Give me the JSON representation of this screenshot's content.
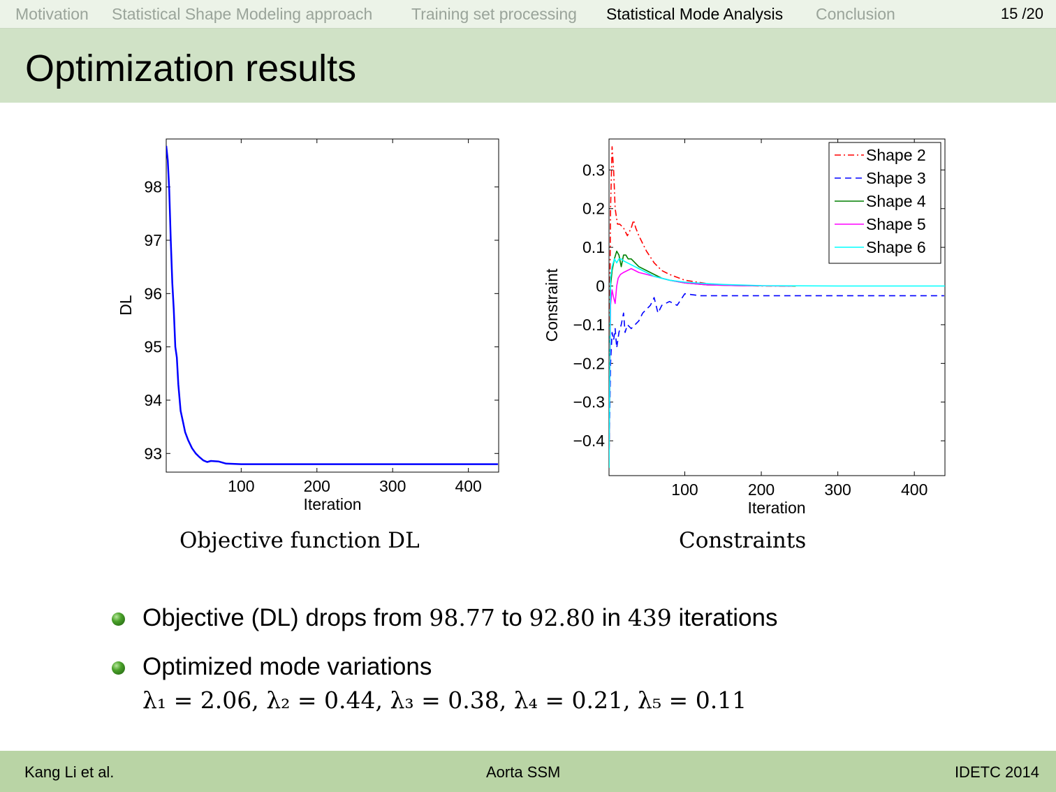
{
  "nav": {
    "items": [
      "Motivation",
      "Statistical Shape Modeling approach",
      "Training set processing",
      "Statistical Mode Analysis",
      "Conclusion"
    ],
    "active_index": 3,
    "page": "15 /20"
  },
  "title": "Optimization results",
  "captions": {
    "left": "Objective function DL",
    "right": "Constraints"
  },
  "bullets": {
    "b1": {
      "t1": "Objective (DL) drops from ",
      "v1": "98.77",
      "t2": " to ",
      "v2": "92.80",
      "t3": " in ",
      "v3": "439",
      "t4": " iterations"
    },
    "b2": {
      "text": "Optimized mode variations",
      "lambdas": "λ₁ = 2.06, λ₂ = 0.44, λ₃ = 0.38, λ₄ = 0.21, λ₅ = 0.11"
    }
  },
  "footer": {
    "left": "Kang Li et al.",
    "center": "Aorta SSM",
    "right": "IDETC 2014"
  },
  "colors": {
    "accent_nav": "#ecf3e8",
    "title_band": "#d0e2c6",
    "footer_band": "#b9d4a5"
  },
  "chart_data": [
    {
      "type": "line",
      "title": "",
      "xlabel": "Iteration",
      "ylabel": "DL",
      "xlim": [
        1,
        440
      ],
      "ylim": [
        92.65,
        98.9
      ],
      "xticks": [
        100,
        200,
        300,
        400
      ],
      "yticks": [
        93,
        94,
        95,
        96,
        97,
        98
      ],
      "grid": false,
      "series": [
        {
          "color": "#0000ff",
          "style": "solid",
          "x": [
            1,
            3,
            5,
            7,
            9,
            11,
            13,
            15,
            17,
            20,
            23,
            26,
            30,
            35,
            40,
            45,
            50,
            55,
            60,
            70,
            80,
            100,
            150,
            200,
            300,
            439
          ],
          "y": [
            98.77,
            98.5,
            97.95,
            97.0,
            96.2,
            95.7,
            95.0,
            94.8,
            94.3,
            93.8,
            93.6,
            93.4,
            93.25,
            93.1,
            93.0,
            92.93,
            92.87,
            92.84,
            92.86,
            92.85,
            92.81,
            92.8,
            92.8,
            92.8,
            92.8,
            92.8
          ]
        }
      ]
    },
    {
      "type": "line",
      "title": "",
      "xlabel": "Iteration",
      "ylabel": "Constraint",
      "xlim": [
        1,
        440
      ],
      "ylim": [
        -0.49,
        0.38
      ],
      "xticks": [
        100,
        200,
        300,
        400
      ],
      "yticks": [
        -0.4,
        -0.3,
        -0.2,
        -0.1,
        0,
        0.1,
        0.2,
        0.3
      ],
      "yticklabels": [
        "−0.4",
        "−0.3",
        "−0.2",
        "−0.1",
        "0",
        "0.1",
        "0.2",
        "0.3"
      ],
      "grid": false,
      "legend": "top-right",
      "series": [
        {
          "name": "Shape 2",
          "color": "#ff0000",
          "style": "dashdot",
          "x": [
            1,
            3,
            5,
            7,
            9,
            12,
            15,
            20,
            25,
            30,
            33,
            36,
            40,
            45,
            50,
            60,
            70,
            80,
            100,
            130,
            160,
            200,
            245
          ],
          "y": [
            -0.3,
            0.2,
            0.36,
            0.3,
            0.2,
            0.16,
            0.16,
            0.15,
            0.13,
            0.15,
            0.17,
            0.15,
            0.13,
            0.11,
            0.09,
            0.06,
            0.04,
            0.03,
            0.015,
            0.006,
            0.002,
            0.0,
            0.0
          ]
        },
        {
          "name": "Shape 3",
          "color": "#0000ff",
          "style": "dashed",
          "x": [
            1,
            3,
            5,
            7,
            9,
            11,
            14,
            17,
            20,
            22,
            25,
            30,
            35,
            40,
            45,
            50,
            55,
            60,
            65,
            70,
            80,
            90,
            100,
            120,
            150,
            200,
            300,
            439
          ],
          "y": [
            -0.45,
            -0.2,
            -0.12,
            -0.14,
            -0.11,
            -0.16,
            -0.12,
            -0.1,
            -0.07,
            -0.12,
            -0.1,
            -0.11,
            -0.1,
            -0.09,
            -0.07,
            -0.06,
            -0.05,
            -0.03,
            -0.07,
            -0.05,
            -0.04,
            -0.05,
            -0.02,
            -0.025,
            -0.025,
            -0.025,
            -0.025,
            -0.025
          ]
        },
        {
          "name": "Shape 4",
          "color": "#007f00",
          "style": "solid",
          "x": [
            1,
            3,
            5,
            8,
            11,
            14,
            17,
            20,
            23,
            26,
            30,
            35,
            40,
            50,
            60,
            70,
            80,
            100,
            130,
            170,
            245
          ],
          "y": [
            -0.47,
            0.0,
            0.04,
            0.07,
            0.09,
            0.08,
            0.05,
            0.08,
            0.08,
            0.07,
            0.07,
            0.06,
            0.05,
            0.04,
            0.03,
            0.02,
            0.015,
            0.008,
            0.003,
            0.001,
            0.0
          ]
        },
        {
          "name": "Shape 5",
          "color": "#ff00ff",
          "style": "solid",
          "x": [
            1,
            3,
            5,
            7,
            9,
            11,
            13,
            16,
            20,
            25,
            30,
            35,
            40,
            50,
            60,
            80,
            100,
            130,
            170,
            240
          ],
          "y": [
            -0.45,
            -0.05,
            -0.01,
            -0.03,
            -0.045,
            0.0,
            0.02,
            0.03,
            0.035,
            0.04,
            0.045,
            0.04,
            0.035,
            0.03,
            0.025,
            0.015,
            0.008,
            0.003,
            0.001,
            0.0
          ]
        },
        {
          "name": "Shape 6",
          "color": "#00ffff",
          "style": "solid",
          "x": [
            1,
            3,
            5,
            8,
            11,
            14,
            17,
            20,
            25,
            30,
            40,
            50,
            60,
            80,
            100,
            130,
            150,
            200,
            300,
            440
          ],
          "y": [
            -0.47,
            0.02,
            0.05,
            0.07,
            0.06,
            0.07,
            0.07,
            0.065,
            0.06,
            0.055,
            0.045,
            0.035,
            0.025,
            0.015,
            0.01,
            0.006,
            0.004,
            0.001,
            0.0,
            0.0
          ]
        }
      ]
    }
  ]
}
